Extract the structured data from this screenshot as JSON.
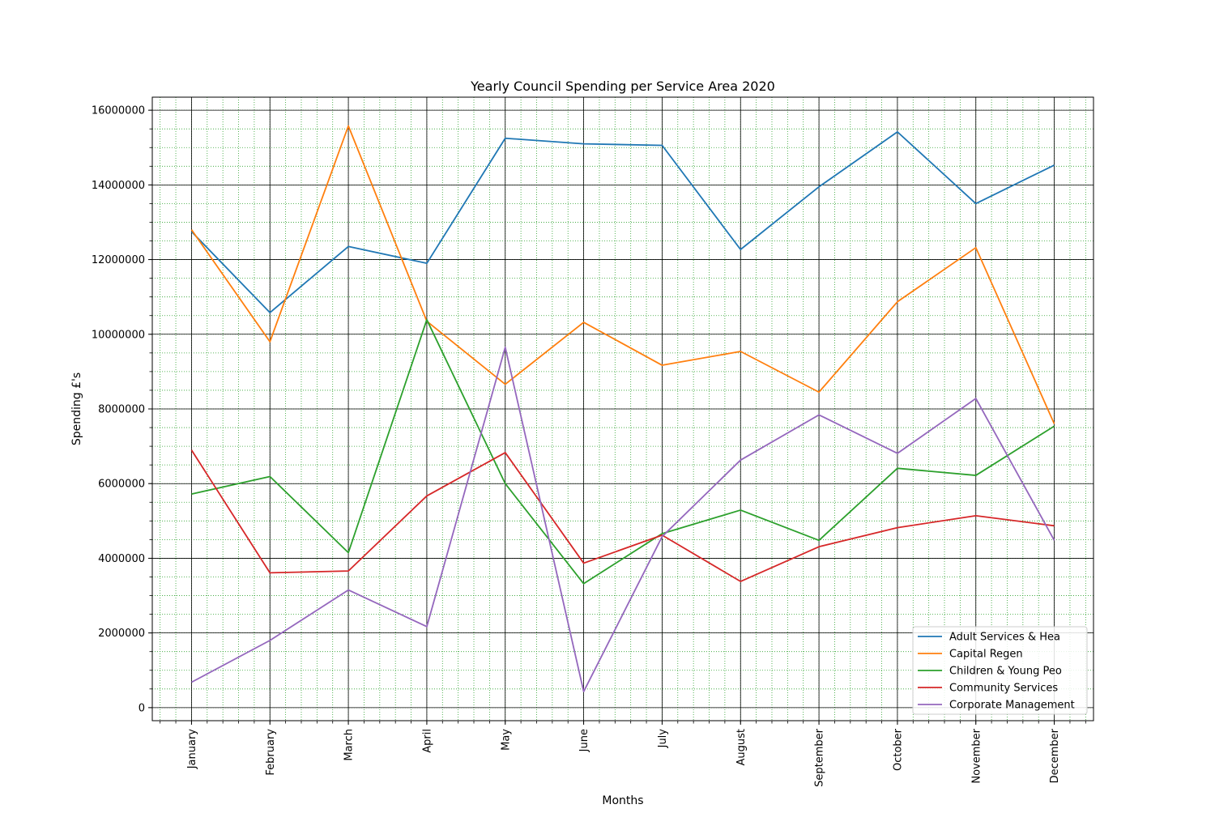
{
  "chart_data": {
    "type": "line",
    "title": "Yearly Council Spending per Service Area 2020",
    "xlabel": "Months",
    "ylabel": "Spending £'s",
    "categories": [
      "January",
      "February",
      "March",
      "April",
      "May",
      "June",
      "July",
      "August",
      "September",
      "October",
      "November",
      "December"
    ],
    "ylim": [
      -350000,
      16350000
    ],
    "yticks": [
      0,
      2000000,
      4000000,
      6000000,
      8000000,
      10000000,
      12000000,
      14000000,
      16000000
    ],
    "ytick_labels": [
      "0",
      "2000000",
      "4000000",
      "6000000",
      "8000000",
      "10000000",
      "12000000",
      "14000000",
      "16000000"
    ],
    "grid": "on",
    "minor_grid": "on",
    "legend_position": "lower-right",
    "series": [
      {
        "name": "Adult Services & Hea",
        "color": "#1f77b4",
        "values": [
          12750000,
          10580000,
          12350000,
          11900000,
          15250000,
          15100000,
          15060000,
          12270000,
          13950000,
          15420000,
          13500000,
          14530000
        ]
      },
      {
        "name": "Capital Regen",
        "color": "#ff7f0e",
        "values": [
          12800000,
          9800000,
          15580000,
          10350000,
          8660000,
          10320000,
          9170000,
          9540000,
          8450000,
          10870000,
          12320000,
          7600000
        ]
      },
      {
        "name": "Children & Young Peo",
        "color": "#2ca02c",
        "values": [
          5720000,
          6190000,
          4150000,
          10390000,
          6000000,
          3320000,
          4660000,
          5290000,
          4480000,
          6410000,
          6220000,
          7540000
        ]
      },
      {
        "name": "Community Services",
        "color": "#d62728",
        "values": [
          6900000,
          3610000,
          3660000,
          5670000,
          6830000,
          3870000,
          4620000,
          3380000,
          4310000,
          4820000,
          5140000,
          4870000
        ]
      },
      {
        "name": "Corporate Management",
        "color": "#9467bd",
        "values": [
          680000,
          1800000,
          3150000,
          2170000,
          9650000,
          430000,
          4580000,
          6630000,
          7840000,
          6810000,
          8280000,
          4480000
        ]
      }
    ]
  }
}
